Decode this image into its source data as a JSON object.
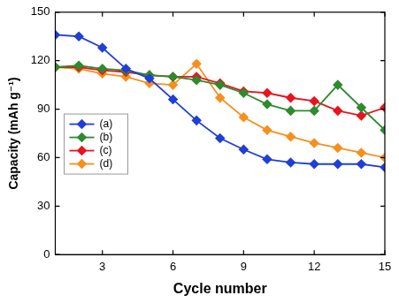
{
  "chart_data": {
    "type": "line",
    "x_label": "Cycle number",
    "y_label": "Capacity (mAh g⁻¹)",
    "x": [
      1,
      2,
      3,
      4,
      5,
      6,
      7,
      8,
      9,
      10,
      11,
      12,
      13,
      14,
      15
    ],
    "series": [
      {
        "name": "(a)",
        "color": "#1f3fd6",
        "values": [
          136,
          135,
          128,
          115,
          109,
          96,
          83,
          72,
          65,
          59,
          57,
          56,
          56,
          56,
          54
        ]
      },
      {
        "name": "(b)",
        "color": "#2e8b2e",
        "values": [
          116,
          117,
          115,
          114,
          111,
          110,
          108,
          105,
          100,
          93,
          89,
          89,
          105,
          91,
          77
        ]
      },
      {
        "name": "(c)",
        "color": "#e8141e",
        "values": [
          116,
          116,
          114,
          113,
          111,
          110,
          110,
          106,
          101,
          100,
          97,
          95,
          89,
          86,
          91
        ]
      },
      {
        "name": "(d)",
        "color": "#f5901e",
        "values": [
          116,
          115,
          112,
          110,
          106,
          105,
          118,
          97,
          85,
          77,
          73,
          69,
          66,
          63,
          60
        ]
      }
    ],
    "xlim": [
      1,
      15
    ],
    "xticks": [
      3,
      6,
      9,
      12,
      15
    ],
    "ylim": [
      0,
      150
    ],
    "yticks": [
      0,
      30,
      60,
      90,
      120,
      150
    ],
    "grid": false,
    "legend": "upper left",
    "marker": "diamond",
    "line_style": "solid"
  }
}
